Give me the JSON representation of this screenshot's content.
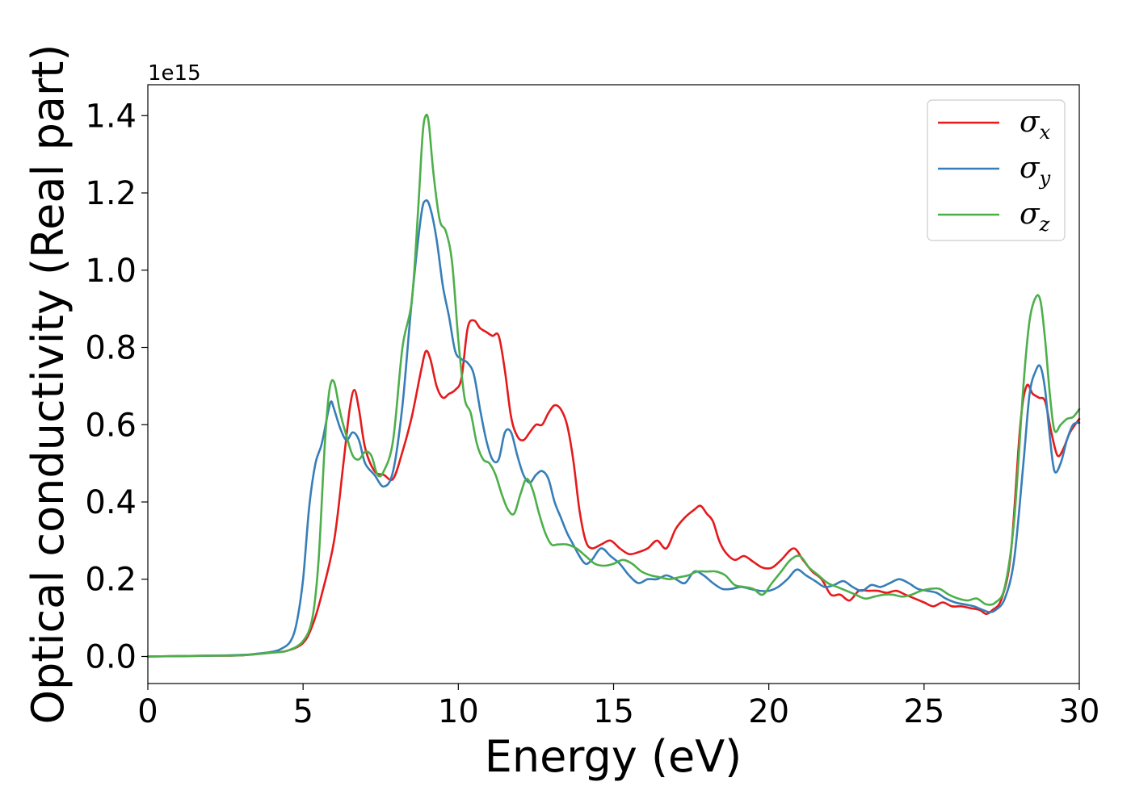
{
  "chart_data": {
    "type": "line",
    "xlabel": "Energy (eV)",
    "ylabel": "Optical conductivity (Real part)",
    "y_offset_label": "1e15",
    "xlim": [
      0,
      30
    ],
    "ylim": [
      -0.07,
      1.48
    ],
    "x_ticks": [
      0,
      5,
      10,
      15,
      20,
      25,
      30
    ],
    "y_ticks": [
      "0.0",
      "0.2",
      "0.4",
      "0.6",
      "0.8",
      "1.0",
      "1.2",
      "1.4"
    ],
    "y_tick_values": [
      0.0,
      0.2,
      0.4,
      0.6,
      0.8,
      1.0,
      1.2,
      1.4
    ],
    "legend_position": "top-right",
    "grid": false,
    "series": [
      {
        "name": "σx",
        "symbol": "σ",
        "subscript": "x",
        "color": "#e41a1c",
        "x": [
          0,
          2,
          3,
          4,
          4.5,
          5,
          5.3,
          5.6,
          6.0,
          6.3,
          6.5,
          6.65,
          6.8,
          7.0,
          7.3,
          7.6,
          7.9,
          8.2,
          8.5,
          8.8,
          8.95,
          9.1,
          9.3,
          9.5,
          9.7,
          9.9,
          10.1,
          10.3,
          10.5,
          10.7,
          10.9,
          11.1,
          11.3,
          11.5,
          11.7,
          11.9,
          12.1,
          12.3,
          12.5,
          12.7,
          12.9,
          13.1,
          13.3,
          13.5,
          13.7,
          13.9,
          14.1,
          14.3,
          14.6,
          14.9,
          15.2,
          15.5,
          15.8,
          16.1,
          16.4,
          16.7,
          17.0,
          17.3,
          17.6,
          17.8,
          18.0,
          18.2,
          18.4,
          18.6,
          18.9,
          19.2,
          19.5,
          19.8,
          20.1,
          20.4,
          20.8,
          21.1,
          21.4,
          21.7,
          22.0,
          22.3,
          22.6,
          22.9,
          23.2,
          23.5,
          23.8,
          24.1,
          24.4,
          24.7,
          25.0,
          25.3,
          25.6,
          25.9,
          26.2,
          26.5,
          26.8,
          27.0,
          27.2,
          27.5,
          27.8,
          28.1,
          28.3,
          28.5,
          28.7,
          28.9,
          29.1,
          29.3,
          29.5,
          29.7,
          30
        ],
        "values": [
          0.0,
          0.002,
          0.003,
          0.01,
          0.015,
          0.035,
          0.08,
          0.16,
          0.3,
          0.5,
          0.64,
          0.69,
          0.64,
          0.54,
          0.48,
          0.47,
          0.46,
          0.53,
          0.62,
          0.74,
          0.79,
          0.77,
          0.7,
          0.67,
          0.68,
          0.69,
          0.72,
          0.85,
          0.87,
          0.85,
          0.84,
          0.83,
          0.83,
          0.74,
          0.62,
          0.57,
          0.56,
          0.58,
          0.6,
          0.6,
          0.63,
          0.65,
          0.64,
          0.6,
          0.51,
          0.38,
          0.3,
          0.28,
          0.29,
          0.3,
          0.28,
          0.265,
          0.27,
          0.28,
          0.3,
          0.28,
          0.33,
          0.36,
          0.38,
          0.39,
          0.37,
          0.35,
          0.3,
          0.27,
          0.25,
          0.26,
          0.245,
          0.23,
          0.23,
          0.25,
          0.28,
          0.25,
          0.22,
          0.2,
          0.16,
          0.16,
          0.145,
          0.17,
          0.17,
          0.17,
          0.165,
          0.17,
          0.16,
          0.15,
          0.14,
          0.13,
          0.14,
          0.13,
          0.13,
          0.125,
          0.12,
          0.11,
          0.12,
          0.15,
          0.27,
          0.6,
          0.7,
          0.68,
          0.67,
          0.66,
          0.58,
          0.52,
          0.54,
          0.58,
          0.615
        ]
      },
      {
        "name": "σy",
        "symbol": "σ",
        "subscript": "y",
        "color": "#377eb8",
        "x": [
          0,
          2,
          3,
          3.5,
          4,
          4.3,
          4.6,
          4.8,
          5.0,
          5.2,
          5.4,
          5.6,
          5.8,
          5.9,
          6.0,
          6.2,
          6.4,
          6.6,
          6.8,
          7.0,
          7.3,
          7.6,
          7.9,
          8.2,
          8.5,
          8.8,
          8.95,
          9.1,
          9.3,
          9.5,
          9.7,
          9.9,
          10.1,
          10.3,
          10.5,
          10.7,
          10.9,
          11.1,
          11.3,
          11.5,
          11.7,
          11.9,
          12.1,
          12.3,
          12.5,
          12.7,
          12.9,
          13.1,
          13.3,
          13.5,
          13.7,
          13.9,
          14.1,
          14.3,
          14.6,
          14.9,
          15.2,
          15.5,
          15.8,
          16.1,
          16.4,
          16.7,
          17.0,
          17.3,
          17.6,
          17.9,
          18.2,
          18.5,
          18.8,
          19.1,
          19.4,
          19.7,
          20.0,
          20.3,
          20.6,
          20.9,
          21.2,
          21.5,
          21.8,
          22.1,
          22.4,
          22.7,
          23.0,
          23.3,
          23.6,
          23.9,
          24.2,
          24.5,
          24.8,
          25.1,
          25.4,
          25.7,
          26.0,
          26.3,
          26.6,
          26.9,
          27.1,
          27.3,
          27.6,
          27.9,
          28.2,
          28.4,
          28.6,
          28.75,
          28.9,
          29.05,
          29.2,
          29.4,
          29.6,
          29.8,
          30
        ],
        "values": [
          0.0,
          0.002,
          0.004,
          0.007,
          0.012,
          0.02,
          0.04,
          0.09,
          0.2,
          0.39,
          0.5,
          0.55,
          0.63,
          0.66,
          0.64,
          0.59,
          0.56,
          0.58,
          0.56,
          0.5,
          0.47,
          0.44,
          0.48,
          0.65,
          0.92,
          1.14,
          1.18,
          1.16,
          1.08,
          0.96,
          0.88,
          0.79,
          0.77,
          0.76,
          0.73,
          0.64,
          0.56,
          0.51,
          0.51,
          0.58,
          0.58,
          0.52,
          0.47,
          0.45,
          0.47,
          0.48,
          0.46,
          0.4,
          0.36,
          0.32,
          0.29,
          0.26,
          0.24,
          0.25,
          0.28,
          0.26,
          0.24,
          0.21,
          0.19,
          0.2,
          0.2,
          0.21,
          0.2,
          0.19,
          0.22,
          0.21,
          0.19,
          0.175,
          0.175,
          0.18,
          0.175,
          0.17,
          0.17,
          0.18,
          0.2,
          0.225,
          0.21,
          0.195,
          0.18,
          0.185,
          0.195,
          0.18,
          0.17,
          0.185,
          0.18,
          0.19,
          0.2,
          0.19,
          0.175,
          0.17,
          0.165,
          0.15,
          0.14,
          0.135,
          0.13,
          0.12,
          0.115,
          0.12,
          0.15,
          0.25,
          0.5,
          0.68,
          0.74,
          0.75,
          0.69,
          0.57,
          0.48,
          0.5,
          0.56,
          0.6,
          0.605
        ]
      },
      {
        "name": "σz",
        "symbol": "σ",
        "subscript": "z",
        "color": "#4daf4a",
        "x": [
          0,
          2,
          3,
          4,
          4.5,
          5,
          5.3,
          5.5,
          5.7,
          5.85,
          6.0,
          6.2,
          6.4,
          6.6,
          6.8,
          7.0,
          7.2,
          7.4,
          7.6,
          7.9,
          8.2,
          8.5,
          8.7,
          8.85,
          8.95,
          9.05,
          9.2,
          9.4,
          9.6,
          9.8,
          10.0,
          10.2,
          10.4,
          10.6,
          10.8,
          11.0,
          11.2,
          11.4,
          11.6,
          11.8,
          12.0,
          12.2,
          12.4,
          12.6,
          12.8,
          13.0,
          13.2,
          13.5,
          13.8,
          14.1,
          14.4,
          14.7,
          15.0,
          15.3,
          15.6,
          15.9,
          16.2,
          16.5,
          16.8,
          17.1,
          17.4,
          17.7,
          18.0,
          18.3,
          18.6,
          18.9,
          19.2,
          19.5,
          19.8,
          20.1,
          20.4,
          20.7,
          21.0,
          21.3,
          21.6,
          21.9,
          22.2,
          22.5,
          22.8,
          23.1,
          23.4,
          23.7,
          24.0,
          24.3,
          24.6,
          24.9,
          25.2,
          25.5,
          25.8,
          26.1,
          26.4,
          26.7,
          27.0,
          27.3,
          27.6,
          27.9,
          28.2,
          28.4,
          28.6,
          28.75,
          28.9,
          29.05,
          29.2,
          29.4,
          29.6,
          29.8,
          30
        ],
        "values": [
          0.0,
          0.002,
          0.003,
          0.01,
          0.015,
          0.04,
          0.1,
          0.25,
          0.55,
          0.69,
          0.71,
          0.63,
          0.57,
          0.52,
          0.51,
          0.53,
          0.52,
          0.47,
          0.48,
          0.56,
          0.8,
          0.92,
          1.15,
          1.35,
          1.4,
          1.38,
          1.25,
          1.13,
          1.1,
          1.02,
          0.82,
          0.67,
          0.63,
          0.55,
          0.51,
          0.5,
          0.47,
          0.42,
          0.38,
          0.37,
          0.42,
          0.46,
          0.43,
          0.37,
          0.32,
          0.29,
          0.29,
          0.29,
          0.28,
          0.26,
          0.24,
          0.235,
          0.24,
          0.25,
          0.24,
          0.22,
          0.21,
          0.205,
          0.2,
          0.205,
          0.21,
          0.22,
          0.22,
          0.22,
          0.21,
          0.185,
          0.18,
          0.175,
          0.16,
          0.19,
          0.22,
          0.25,
          0.26,
          0.23,
          0.21,
          0.19,
          0.18,
          0.17,
          0.16,
          0.15,
          0.155,
          0.16,
          0.16,
          0.155,
          0.16,
          0.17,
          0.175,
          0.175,
          0.16,
          0.15,
          0.145,
          0.15,
          0.135,
          0.14,
          0.18,
          0.35,
          0.7,
          0.87,
          0.93,
          0.92,
          0.82,
          0.68,
          0.585,
          0.6,
          0.615,
          0.62,
          0.64
        ]
      }
    ]
  }
}
